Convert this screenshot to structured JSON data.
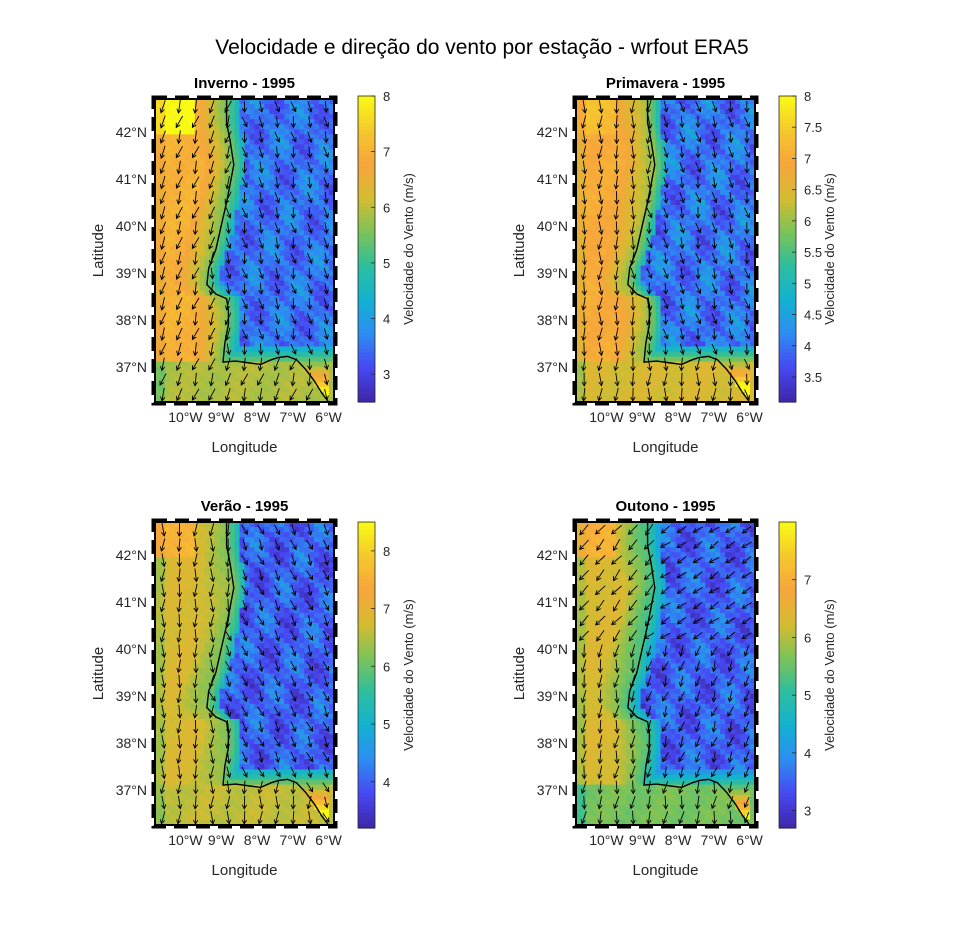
{
  "figure": {
    "title": "Velocidade e direção do vento por estação - wrfout ERA5"
  },
  "colormap": {
    "name": "parula",
    "stops": [
      "#3e26a8",
      "#4748f3",
      "#2d8df2",
      "#13b1d1",
      "#2dbe9f",
      "#7dc357",
      "#d5bc31",
      "#f7a53c",
      "#f5c92c",
      "#f9fb14"
    ]
  },
  "colors": {
    "land_coast_line": "#000000",
    "arrow": "#000000",
    "frame": "#000000"
  },
  "axes_text": {
    "xlabel": "Longitude",
    "ylabel": "Latitude",
    "xticks": [
      "10°W",
      "9°W",
      "8°W",
      "7°W",
      "6°W"
    ],
    "yticks": [
      "42°N",
      "41°N",
      "40°N",
      "39°N",
      "38°N",
      "37°N"
    ],
    "colorbar_label": "Velocidade do Vento (m/s)"
  },
  "panels": [
    {
      "title": "Inverno - 1995",
      "colorbar_range": [
        2.5,
        8.0
      ],
      "colorbar_ticks": [
        "3",
        "4",
        "5",
        "6",
        "7",
        "8"
      ],
      "ocean_wind_speed_ms": 7.0,
      "land_wind_speed_ms": 3.5,
      "coast_band_speed_ms": 5.5,
      "north_ocean_max_ms": 8.0,
      "arrow_direction": "towards south-southwest over ocean, south-southeast over land"
    },
    {
      "title": "Primavera - 1995",
      "colorbar_range": [
        3.1,
        8.0
      ],
      "colorbar_ticks": [
        "3.5",
        "4",
        "4.5",
        "5",
        "5.5",
        "6",
        "6.5",
        "7",
        "7.5",
        "8"
      ],
      "ocean_wind_speed_ms": 7.0,
      "land_wind_speed_ms": 4.0,
      "coast_band_speed_ms": 6.0,
      "north_ocean_max_ms": 7.3,
      "arrow_direction": "towards south over ocean, south-southeast over land"
    },
    {
      "title": "Verão - 1995",
      "colorbar_range": [
        3.2,
        8.5
      ],
      "colorbar_ticks": [
        "4",
        "5",
        "6",
        "7",
        "8"
      ],
      "ocean_wind_speed_ms": 6.8,
      "land_wind_speed_ms": 4.0,
      "coast_band_speed_ms": 6.2,
      "north_ocean_max_ms": 7.6,
      "arrow_direction": "towards south over ocean, southeast over land"
    },
    {
      "title": "Outono - 1995",
      "colorbar_range": [
        2.7,
        8.0
      ],
      "colorbar_ticks": [
        "3",
        "4",
        "5",
        "6",
        "7"
      ],
      "ocean_wind_speed_ms": 6.3,
      "land_wind_speed_ms": 3.5,
      "coast_band_speed_ms": 5.2,
      "north_ocean_max_ms": 7.0,
      "arrow_direction": "mixed, towards southwest north of 40N and south elsewhere"
    }
  ]
}
